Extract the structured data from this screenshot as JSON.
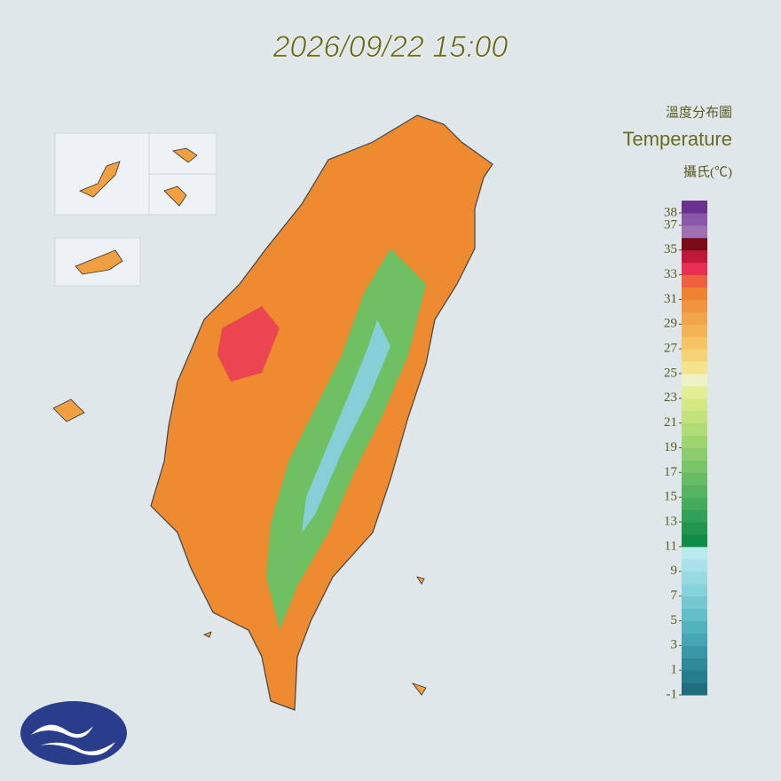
{
  "header": {
    "title": "2026/09/22 15:00"
  },
  "legend": {
    "title": "溫度分布圖",
    "subtitle": "Temperature",
    "unit": "攝氏(℃)",
    "range": [
      -1,
      39
    ],
    "ticks": [
      38,
      37,
      35,
      33,
      31,
      29,
      27,
      25,
      23,
      21,
      19,
      17,
      15,
      13,
      11,
      9,
      7,
      5,
      3,
      1,
      -1
    ],
    "colors": [
      "#1e6e7e",
      "#267d8c",
      "#2e8a98",
      "#3898a6",
      "#44a6b2",
      "#52b2be",
      "#62bec8",
      "#74c8d2",
      "#86d2da",
      "#98dae2",
      "#a8e2e8",
      "#b8eaee",
      "#0e8c48",
      "#20964e",
      "#32a056",
      "#44aa5c",
      "#56b462",
      "#68bc66",
      "#7ac46a",
      "#8ccc6e",
      "#9ed472",
      "#b0dc76",
      "#c2e27c",
      "#d4e884",
      "#e2ee94",
      "#eef2c4",
      "#f6e48c",
      "#f6d474",
      "#f6c462",
      "#f4b454",
      "#f2a44a",
      "#f09440",
      "#ee8430",
      "#f06040",
      "#ea3050",
      "#c01838",
      "#7a0a14",
      "#a070b0",
      "#8a58a8",
      "#6c3090"
    ]
  }
}
